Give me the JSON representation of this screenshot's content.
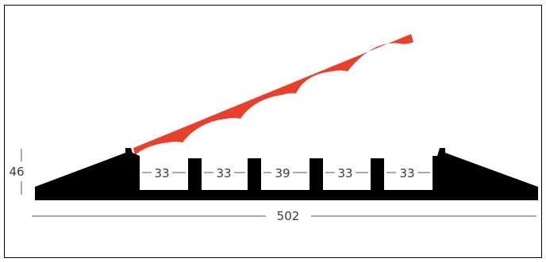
{
  "diagram": {
    "height_label": "46",
    "channel_widths": [
      "33",
      "33",
      "39",
      "33",
      "33"
    ],
    "overall_width_label": "502",
    "colors": {
      "body": "#000000",
      "lid": "#e8402d",
      "dimension_line": "#555555",
      "dimension_text": "#3a3a3a",
      "border": "#000000"
    }
  }
}
